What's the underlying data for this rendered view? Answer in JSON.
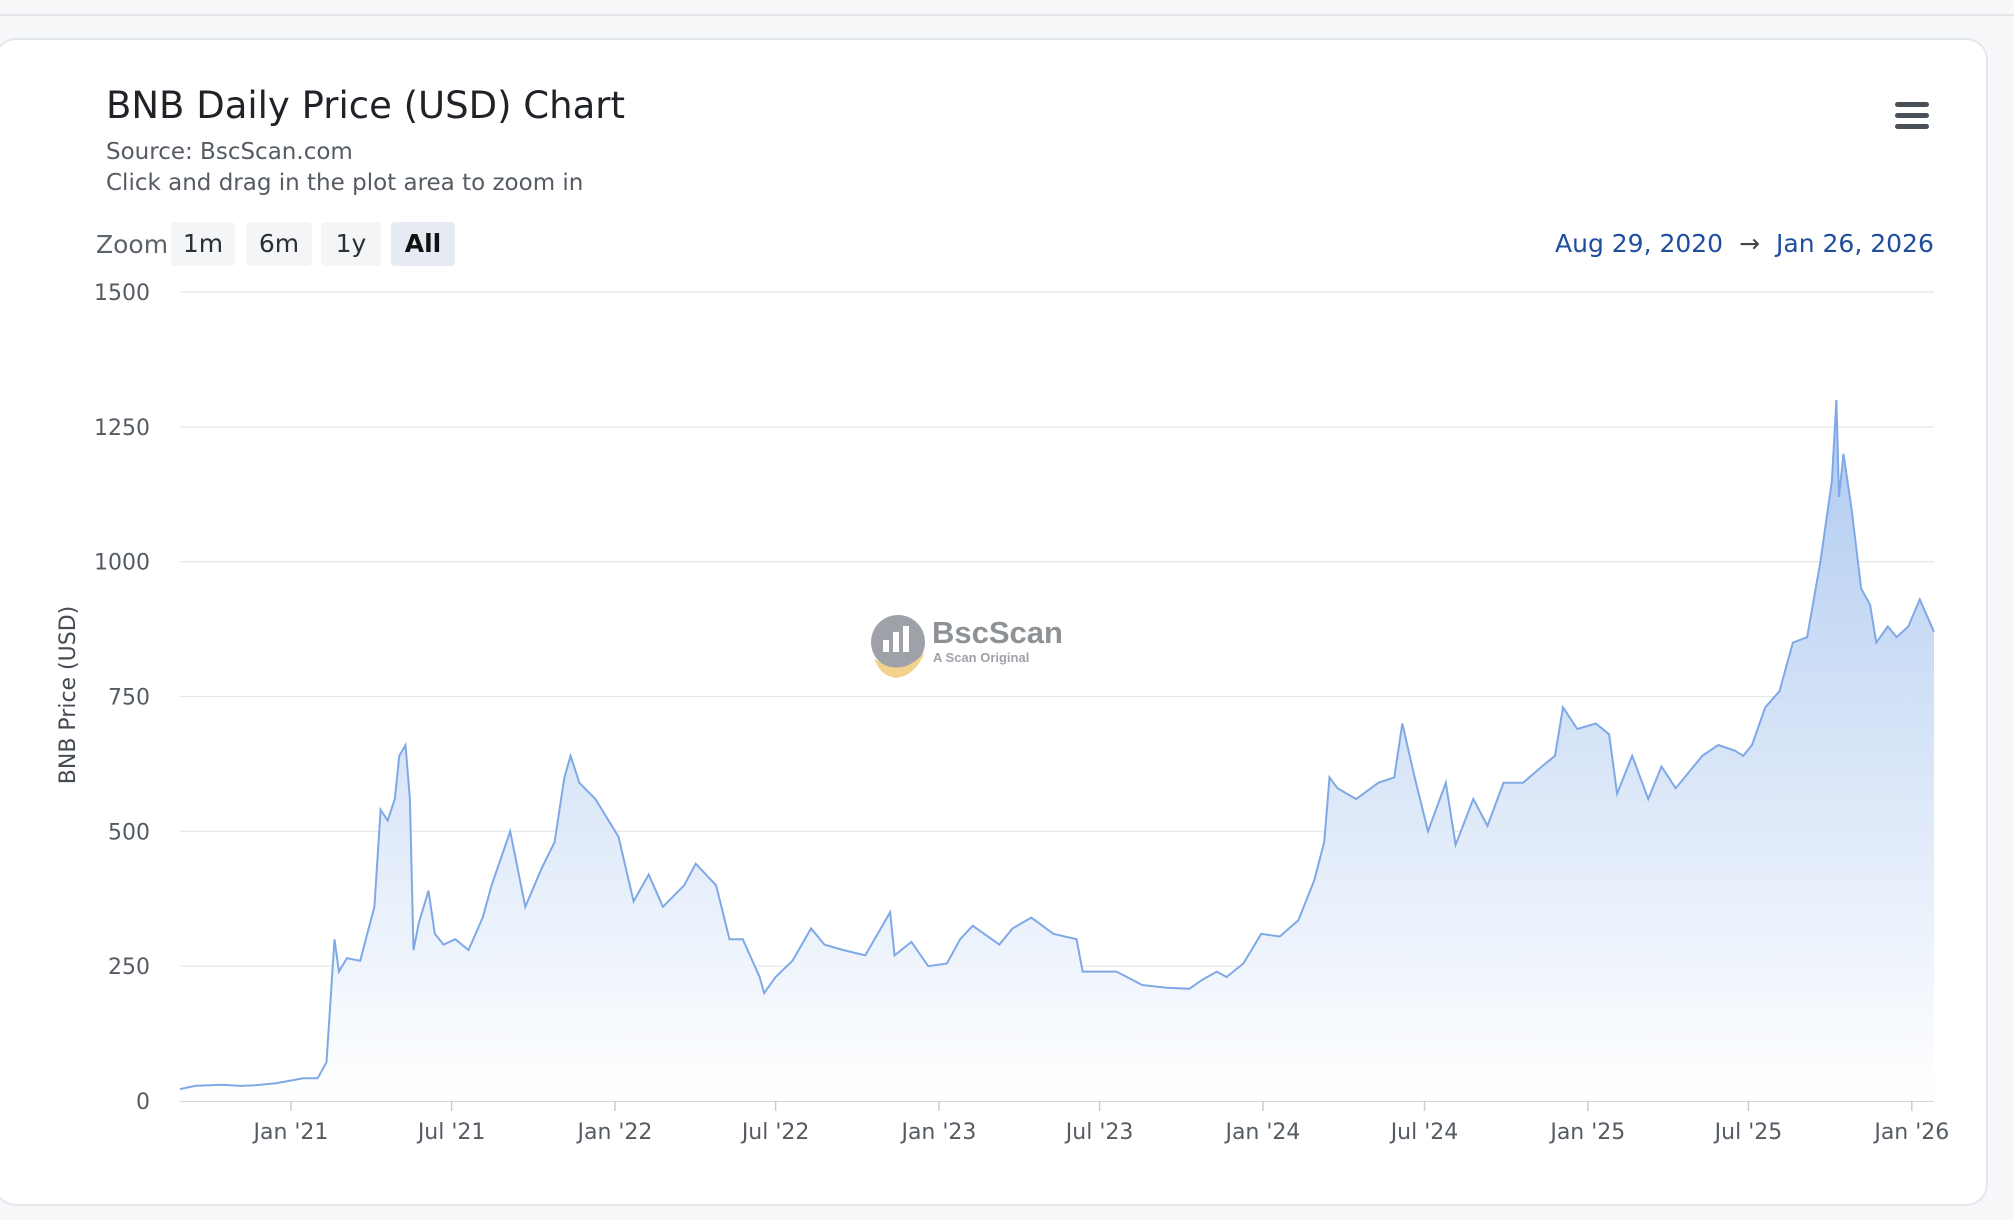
{
  "header": {
    "title": "BNB Daily Price (USD) Chart",
    "source": "Source: BscScan.com",
    "hint": "Click and drag in the plot area to zoom in"
  },
  "zoom": {
    "label": "Zoom",
    "buttons": [
      "1m",
      "6m",
      "1y",
      "All"
    ],
    "active": "All"
  },
  "range": {
    "from": "Aug 29, 2020",
    "arrow": "→",
    "to": "Jan 26, 2026"
  },
  "menu": {
    "icon": "hamburger-menu-icon"
  },
  "watermark": {
    "brand": "BscScan",
    "tagline": "A Scan Original",
    "icon": "bscscan-logo-icon"
  },
  "colors": {
    "line": "#7fa9e6",
    "area_top": "#a9c6ef",
    "area_bottom": "#ffffff",
    "grid": "#e3e5e8",
    "range_text": "#1e4e9c"
  },
  "chart_data": {
    "type": "area",
    "title": "BNB Daily Price (USD) Chart",
    "subtitle": "Source: BscScan.com",
    "ylabel": "BNB Price (USD)",
    "xlabel": "",
    "ylim": [
      0,
      1500
    ],
    "yticks": [
      0,
      250,
      500,
      750,
      1000,
      1250,
      1500
    ],
    "xlim": [
      "2020-08-29",
      "2026-01-26"
    ],
    "xticks": [
      {
        "date": "2021-01-01",
        "label": "Jan '21"
      },
      {
        "date": "2021-07-01",
        "label": "Jul '21"
      },
      {
        "date": "2022-01-01",
        "label": "Jan '22"
      },
      {
        "date": "2022-07-01",
        "label": "Jul '22"
      },
      {
        "date": "2023-01-01",
        "label": "Jan '23"
      },
      {
        "date": "2023-07-01",
        "label": "Jul '23"
      },
      {
        "date": "2024-01-01",
        "label": "Jan '24"
      },
      {
        "date": "2024-07-01",
        "label": "Jul '24"
      },
      {
        "date": "2025-01-01",
        "label": "Jan '25"
      },
      {
        "date": "2025-07-01",
        "label": "Jul '25"
      },
      {
        "date": "2026-01-01",
        "label": "Jan '26"
      }
    ],
    "grid": true,
    "legend": "none",
    "series": [
      {
        "points": [
          [
            "2020-08-29",
            22
          ],
          [
            "2020-09-15",
            28
          ],
          [
            "2020-10-15",
            30
          ],
          [
            "2020-11-05",
            28
          ],
          [
            "2020-11-20",
            29
          ],
          [
            "2020-12-15",
            33
          ],
          [
            "2021-01-15",
            42
          ],
          [
            "2021-01-31",
            42
          ],
          [
            "2021-02-10",
            72
          ],
          [
            "2021-02-19",
            300
          ],
          [
            "2021-02-24",
            240
          ],
          [
            "2021-03-05",
            265
          ],
          [
            "2021-03-20",
            260
          ],
          [
            "2021-04-05",
            360
          ],
          [
            "2021-04-12",
            540
          ],
          [
            "2021-04-20",
            520
          ],
          [
            "2021-04-28",
            560
          ],
          [
            "2021-05-03",
            640
          ],
          [
            "2021-05-10",
            660
          ],
          [
            "2021-05-15",
            560
          ],
          [
            "2021-05-19",
            280
          ],
          [
            "2021-05-25",
            330
          ],
          [
            "2021-06-05",
            390
          ],
          [
            "2021-06-12",
            310
          ],
          [
            "2021-06-22",
            290
          ],
          [
            "2021-07-05",
            300
          ],
          [
            "2021-07-20",
            280
          ],
          [
            "2021-08-05",
            340
          ],
          [
            "2021-08-15",
            400
          ],
          [
            "2021-09-05",
            500
          ],
          [
            "2021-09-22",
            360
          ],
          [
            "2021-10-10",
            430
          ],
          [
            "2021-10-25",
            480
          ],
          [
            "2021-11-05",
            600
          ],
          [
            "2021-11-12",
            640
          ],
          [
            "2021-11-22",
            590
          ],
          [
            "2021-12-10",
            560
          ],
          [
            "2022-01-05",
            490
          ],
          [
            "2022-01-22",
            370
          ],
          [
            "2022-02-08",
            420
          ],
          [
            "2022-02-24",
            360
          ],
          [
            "2022-03-20",
            400
          ],
          [
            "2022-04-02",
            440
          ],
          [
            "2022-04-25",
            400
          ],
          [
            "2022-05-10",
            300
          ],
          [
            "2022-05-25",
            300
          ],
          [
            "2022-06-13",
            230
          ],
          [
            "2022-06-18",
            200
          ],
          [
            "2022-07-01",
            230
          ],
          [
            "2022-07-20",
            260
          ],
          [
            "2022-08-10",
            320
          ],
          [
            "2022-08-25",
            290
          ],
          [
            "2022-09-15",
            280
          ],
          [
            "2022-10-10",
            270
          ],
          [
            "2022-11-07",
            350
          ],
          [
            "2022-11-12",
            270
          ],
          [
            "2022-12-01",
            295
          ],
          [
            "2022-12-20",
            250
          ],
          [
            "2023-01-10",
            255
          ],
          [
            "2023-01-25",
            300
          ],
          [
            "2023-02-08",
            325
          ],
          [
            "2023-03-10",
            290
          ],
          [
            "2023-03-25",
            320
          ],
          [
            "2023-04-15",
            340
          ],
          [
            "2023-05-10",
            310
          ],
          [
            "2023-06-05",
            300
          ],
          [
            "2023-06-12",
            240
          ],
          [
            "2023-07-01",
            240
          ],
          [
            "2023-07-20",
            240
          ],
          [
            "2023-08-18",
            215
          ],
          [
            "2023-09-15",
            210
          ],
          [
            "2023-10-10",
            208
          ],
          [
            "2023-10-25",
            225
          ],
          [
            "2023-11-10",
            240
          ],
          [
            "2023-11-21",
            230
          ],
          [
            "2023-12-10",
            255
          ],
          [
            "2023-12-30",
            310
          ],
          [
            "2024-01-20",
            305
          ],
          [
            "2024-02-10",
            335
          ],
          [
            "2024-02-28",
            410
          ],
          [
            "2024-03-10",
            480
          ],
          [
            "2024-03-16",
            600
          ],
          [
            "2024-03-25",
            580
          ],
          [
            "2024-04-15",
            560
          ],
          [
            "2024-05-10",
            590
          ],
          [
            "2024-05-28",
            600
          ],
          [
            "2024-06-06",
            700
          ],
          [
            "2024-06-20",
            600
          ],
          [
            "2024-07-05",
            500
          ],
          [
            "2024-07-25",
            590
          ],
          [
            "2024-08-05",
            475
          ],
          [
            "2024-08-25",
            560
          ],
          [
            "2024-09-10",
            510
          ],
          [
            "2024-09-28",
            590
          ],
          [
            "2024-10-20",
            590
          ],
          [
            "2024-11-10",
            620
          ],
          [
            "2024-11-25",
            640
          ],
          [
            "2024-12-04",
            730
          ],
          [
            "2024-12-20",
            690
          ],
          [
            "2025-01-10",
            700
          ],
          [
            "2025-01-25",
            680
          ],
          [
            "2025-02-03",
            570
          ],
          [
            "2025-02-20",
            640
          ],
          [
            "2025-03-10",
            560
          ],
          [
            "2025-03-25",
            620
          ],
          [
            "2025-04-10",
            580
          ],
          [
            "2025-05-10",
            640
          ],
          [
            "2025-05-28",
            660
          ],
          [
            "2025-06-15",
            650
          ],
          [
            "2025-06-25",
            640
          ],
          [
            "2025-07-05",
            660
          ],
          [
            "2025-07-20",
            730
          ],
          [
            "2025-08-05",
            760
          ],
          [
            "2025-08-20",
            850
          ],
          [
            "2025-09-05",
            860
          ],
          [
            "2025-09-20",
            1000
          ],
          [
            "2025-10-03",
            1150
          ],
          [
            "2025-10-08",
            1300
          ],
          [
            "2025-10-11",
            1120
          ],
          [
            "2025-10-16",
            1200
          ],
          [
            "2025-10-25",
            1100
          ],
          [
            "2025-11-05",
            950
          ],
          [
            "2025-11-15",
            920
          ],
          [
            "2025-11-22",
            850
          ],
          [
            "2025-12-05",
            880
          ],
          [
            "2025-12-15",
            860
          ],
          [
            "2025-12-28",
            880
          ],
          [
            "2026-01-10",
            930
          ],
          [
            "2026-01-26",
            870
          ]
        ]
      }
    ]
  }
}
